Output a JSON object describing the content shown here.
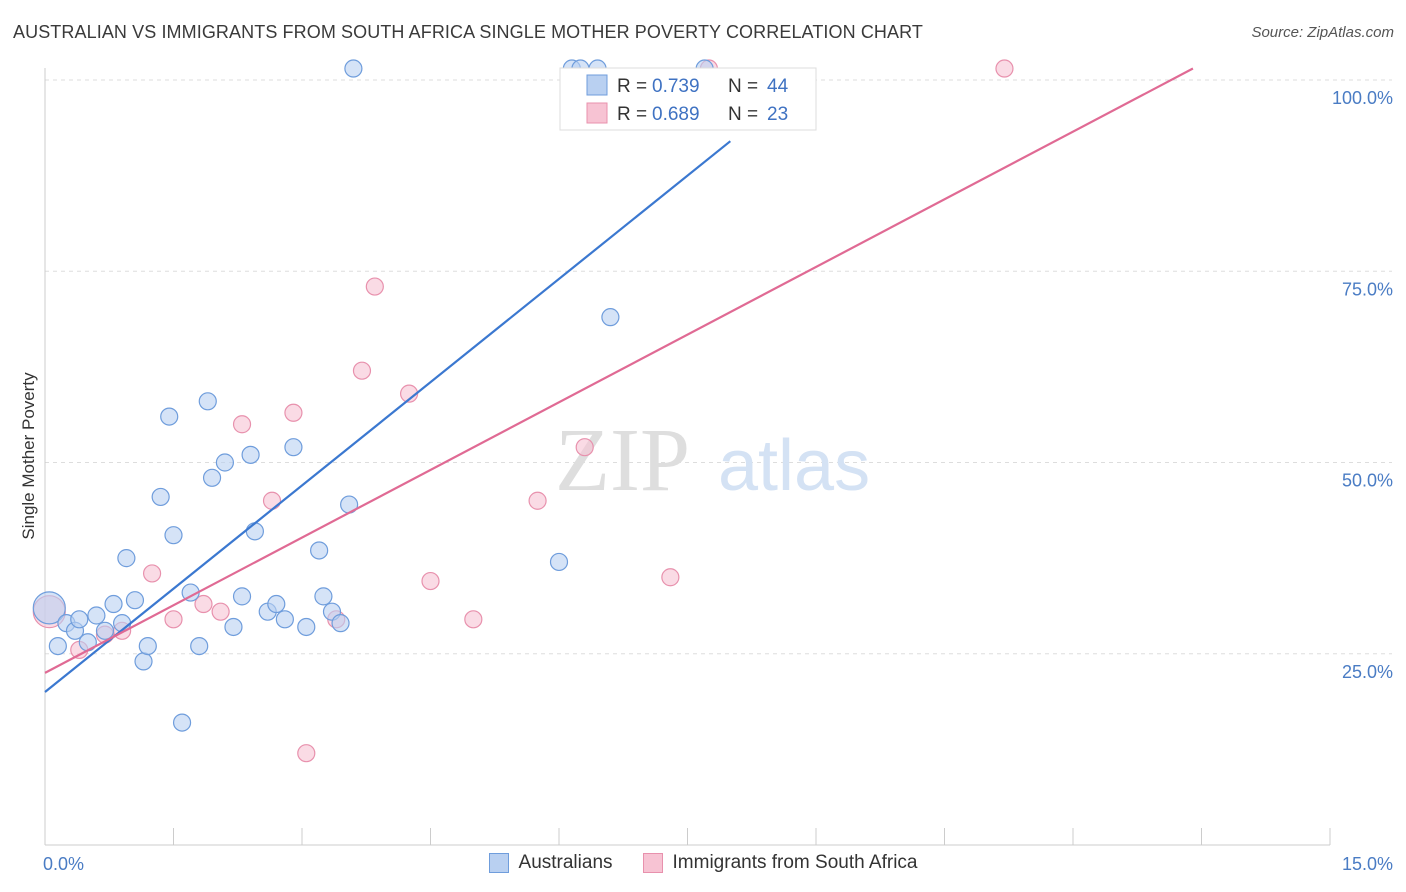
{
  "header": {
    "title": "AUSTRALIAN VS IMMIGRANTS FROM SOUTH AFRICA SINGLE MOTHER POVERTY CORRELATION CHART",
    "source": "Source: ZipAtlas.com"
  },
  "watermark": {
    "zip": "ZIP",
    "atlas": "atlas"
  },
  "colors": {
    "blue_fill": "#b9d0f1",
    "blue_stroke": "#6f9ddc",
    "blue_line": "#3b78d0",
    "pink_fill": "#f7c3d3",
    "pink_stroke": "#e891ad",
    "pink_line": "#e06a94",
    "tick_text": "#4a7cc4",
    "grid": "#dddddd"
  },
  "stats_legend": [
    {
      "r_label": "R = ",
      "r_value": "0.739",
      "n_label": "N = ",
      "n_value": "44"
    },
    {
      "r_label": "R = ",
      "r_value": "0.689",
      "n_label": "N = ",
      "n_value": "23"
    }
  ],
  "chart_data": {
    "type": "scatter",
    "title": "AUSTRALIAN VS IMMIGRANTS FROM SOUTH AFRICA SINGLE MOTHER POVERTY CORRELATION CHART",
    "xlabel": "",
    "ylabel": "Single Mother Poverty",
    "xlim": [
      0,
      15
    ],
    "ylim": [
      0,
      100
    ],
    "x_tick_labels": [
      {
        "value": 0,
        "label": "0.0%"
      },
      {
        "value": 15,
        "label": "15.0%"
      }
    ],
    "y_tick_labels": [
      {
        "value": 25,
        "label": "25.0%"
      },
      {
        "value": 50,
        "label": "50.0%"
      },
      {
        "value": 75,
        "label": "75.0%"
      },
      {
        "value": 100,
        "label": "100.0%"
      }
    ],
    "grid": true,
    "legend": "bottom-center",
    "series": [
      {
        "name": "Australians",
        "color": "#6f9ddc",
        "trend": {
          "x": [
            0,
            8.0
          ],
          "y": [
            20.0,
            92.0
          ]
        },
        "points": [
          {
            "x": 0.05,
            "y": 31.0,
            "big": true
          },
          {
            "x": 0.15,
            "y": 26.0
          },
          {
            "x": 0.25,
            "y": 29.0
          },
          {
            "x": 0.35,
            "y": 28.0
          },
          {
            "x": 0.4,
            "y": 29.5
          },
          {
            "x": 0.5,
            "y": 26.5
          },
          {
            "x": 0.6,
            "y": 30.0
          },
          {
            "x": 0.7,
            "y": 28.0
          },
          {
            "x": 0.8,
            "y": 31.5
          },
          {
            "x": 0.9,
            "y": 29.0
          },
          {
            "x": 0.95,
            "y": 37.5
          },
          {
            "x": 1.05,
            "y": 32.0
          },
          {
            "x": 1.15,
            "y": 24.0
          },
          {
            "x": 1.2,
            "y": 26.0
          },
          {
            "x": 1.35,
            "y": 45.5
          },
          {
            "x": 1.45,
            "y": 56.0
          },
          {
            "x": 1.5,
            "y": 40.5
          },
          {
            "x": 1.6,
            "y": 16.0
          },
          {
            "x": 1.7,
            "y": 33.0
          },
          {
            "x": 1.8,
            "y": 26.0
          },
          {
            "x": 1.9,
            "y": 58.0
          },
          {
            "x": 1.95,
            "y": 48.0
          },
          {
            "x": 2.1,
            "y": 50.0
          },
          {
            "x": 2.2,
            "y": 28.5
          },
          {
            "x": 2.3,
            "y": 32.5
          },
          {
            "x": 2.4,
            "y": 51.0
          },
          {
            "x": 2.45,
            "y": 41.0
          },
          {
            "x": 2.6,
            "y": 30.5
          },
          {
            "x": 2.7,
            "y": 31.5
          },
          {
            "x": 2.8,
            "y": 29.5
          },
          {
            "x": 2.9,
            "y": 52.0
          },
          {
            "x": 3.05,
            "y": 28.5
          },
          {
            "x": 3.2,
            "y": 38.5
          },
          {
            "x": 3.25,
            "y": 32.5
          },
          {
            "x": 3.6,
            "y": 101.5
          },
          {
            "x": 3.35,
            "y": 30.5
          },
          {
            "x": 3.45,
            "y": 29.0
          },
          {
            "x": 3.55,
            "y": 44.5
          },
          {
            "x": 6.0,
            "y": 37.0
          },
          {
            "x": 6.15,
            "y": 101.5
          },
          {
            "x": 6.25,
            "y": 101.5
          },
          {
            "x": 6.45,
            "y": 101.5
          },
          {
            "x": 6.6,
            "y": 69.0
          },
          {
            "x": 7.7,
            "y": 101.5
          }
        ]
      },
      {
        "name": "Immigrants from South Africa",
        "color": "#e891ad",
        "trend": {
          "x": [
            0,
            13.4
          ],
          "y": [
            22.5,
            101.5
          ]
        },
        "points": [
          {
            "x": 0.05,
            "y": 30.5,
            "big": true
          },
          {
            "x": 0.4,
            "y": 25.5
          },
          {
            "x": 0.7,
            "y": 27.5
          },
          {
            "x": 0.9,
            "y": 28.0
          },
          {
            "x": 1.25,
            "y": 35.5
          },
          {
            "x": 1.5,
            "y": 29.5
          },
          {
            "x": 1.85,
            "y": 31.5
          },
          {
            "x": 2.05,
            "y": 30.5
          },
          {
            "x": 2.3,
            "y": 55.0
          },
          {
            "x": 2.65,
            "y": 45.0
          },
          {
            "x": 2.9,
            "y": 56.5
          },
          {
            "x": 3.05,
            "y": 12.0
          },
          {
            "x": 3.4,
            "y": 29.5
          },
          {
            "x": 3.7,
            "y": 62.0
          },
          {
            "x": 3.85,
            "y": 73.0
          },
          {
            "x": 4.25,
            "y": 59.0
          },
          {
            "x": 4.5,
            "y": 34.5
          },
          {
            "x": 5.0,
            "y": 29.5
          },
          {
            "x": 5.75,
            "y": 45.0
          },
          {
            "x": 6.3,
            "y": 52.0
          },
          {
            "x": 7.3,
            "y": 35.0
          },
          {
            "x": 7.75,
            "y": 101.5
          },
          {
            "x": 11.2,
            "y": 101.5
          }
        ]
      }
    ]
  }
}
